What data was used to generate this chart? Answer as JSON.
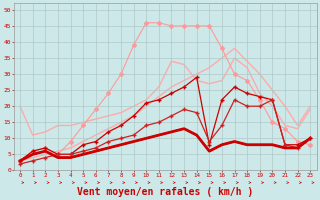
{
  "background_color": "#cce8e8",
  "grid_color": "#b0c8c8",
  "xlabel": "Vent moyen/en rafales ( km/h )",
  "xlabel_color": "#cc0000",
  "ylim": [
    0,
    52
  ],
  "xlim": [
    -0.5,
    23.5
  ],
  "xticks": [
    0,
    1,
    2,
    3,
    4,
    5,
    6,
    7,
    8,
    9,
    10,
    11,
    12,
    13,
    14,
    15,
    16,
    17,
    18,
    19,
    20,
    21,
    22,
    23
  ],
  "yticks": [
    0,
    5,
    10,
    15,
    20,
    25,
    30,
    35,
    40,
    45,
    50
  ],
  "lines": [
    {
      "x": [
        0,
        1,
        2,
        3,
        4,
        5,
        6,
        7,
        8,
        9,
        10,
        11,
        12,
        13,
        14,
        15,
        16,
        17,
        18,
        19,
        20,
        21,
        22,
        23
      ],
      "y": [
        3,
        6,
        7,
        5,
        9,
        14,
        19,
        24,
        30,
        39,
        46,
        46,
        45,
        45,
        45,
        45,
        38,
        30,
        28,
        22,
        15,
        13,
        9,
        8
      ],
      "color": "#ff9999",
      "lw": 0.8,
      "marker": "D",
      "ms": 2.0,
      "alpha": 1.0,
      "zorder": 2
    },
    {
      "x": [
        0,
        1,
        2,
        3,
        4,
        5,
        6,
        7,
        8,
        9,
        10,
        11,
        12,
        13,
        14,
        15,
        16,
        17,
        18,
        19,
        20,
        21,
        22,
        23
      ],
      "y": [
        3,
        4,
        5,
        6,
        7,
        9,
        11,
        13,
        15,
        17,
        20,
        23,
        26,
        28,
        30,
        32,
        35,
        38,
        34,
        30,
        25,
        20,
        14,
        20
      ],
      "color": "#ffaaaa",
      "lw": 1.0,
      "marker": null,
      "ms": 0,
      "alpha": 1.0,
      "zorder": 1
    },
    {
      "x": [
        0,
        1,
        2,
        3,
        4,
        5,
        6,
        7,
        8,
        9,
        10,
        11,
        12,
        13,
        14,
        15,
        16,
        17,
        18,
        19,
        20,
        21,
        22,
        23
      ],
      "y": [
        20,
        11,
        12,
        14,
        14,
        15,
        16,
        17,
        18,
        20,
        22,
        26,
        34,
        33,
        28,
        27,
        28,
        35,
        32,
        24,
        20,
        14,
        13,
        19
      ],
      "color": "#ffaaaa",
      "lw": 1.0,
      "marker": null,
      "ms": 0,
      "alpha": 1.0,
      "zorder": 1
    },
    {
      "x": [
        0,
        1,
        2,
        3,
        4,
        5,
        6,
        7,
        8,
        9,
        10,
        11,
        12,
        13,
        14,
        15,
        16,
        17,
        18,
        19,
        20,
        21,
        22,
        23
      ],
      "y": [
        3,
        6,
        7,
        5,
        5,
        8,
        9,
        12,
        14,
        17,
        21,
        22,
        24,
        26,
        29,
        8,
        22,
        26,
        24,
        23,
        22,
        8,
        8,
        10
      ],
      "color": "#cc0000",
      "lw": 0.9,
      "marker": "+",
      "ms": 3.5,
      "alpha": 1.0,
      "zorder": 4
    },
    {
      "x": [
        0,
        1,
        2,
        3,
        4,
        5,
        6,
        7,
        8,
        9,
        10,
        11,
        12,
        13,
        14,
        15,
        16,
        17,
        18,
        19,
        20,
        21,
        22,
        23
      ],
      "y": [
        3,
        5,
        6,
        4,
        4,
        5,
        6,
        7,
        8,
        9,
        10,
        11,
        12,
        13,
        11,
        6,
        8,
        9,
        8,
        8,
        8,
        7,
        7,
        10
      ],
      "color": "#cc0000",
      "lw": 2.0,
      "marker": null,
      "ms": 0,
      "alpha": 1.0,
      "zorder": 5
    },
    {
      "x": [
        0,
        1,
        2,
        3,
        4,
        5,
        6,
        7,
        8,
        9,
        10,
        11,
        12,
        13,
        14,
        15,
        16,
        17,
        18,
        19,
        20,
        21,
        22,
        23
      ],
      "y": [
        3,
        5,
        6,
        4,
        4,
        5,
        6,
        7,
        8,
        9,
        10,
        11,
        12,
        13,
        11,
        6,
        8,
        9,
        8,
        8,
        8,
        7,
        7,
        10
      ],
      "color": "#cc0000",
      "lw": 1.2,
      "marker": null,
      "ms": 0,
      "alpha": 1.0,
      "zorder": 3
    },
    {
      "x": [
        0,
        1,
        2,
        3,
        4,
        5,
        6,
        7,
        8,
        9,
        10,
        11,
        12,
        13,
        14,
        15,
        16,
        17,
        18,
        19,
        20,
        21,
        22,
        23
      ],
      "y": [
        2,
        3,
        4,
        5,
        5,
        6,
        7,
        9,
        10,
        11,
        14,
        15,
        17,
        19,
        18,
        9,
        14,
        22,
        20,
        20,
        22,
        8,
        7,
        10
      ],
      "color": "#cc2222",
      "lw": 0.9,
      "marker": "+",
      "ms": 3.0,
      "alpha": 1.0,
      "zorder": 4
    }
  ]
}
